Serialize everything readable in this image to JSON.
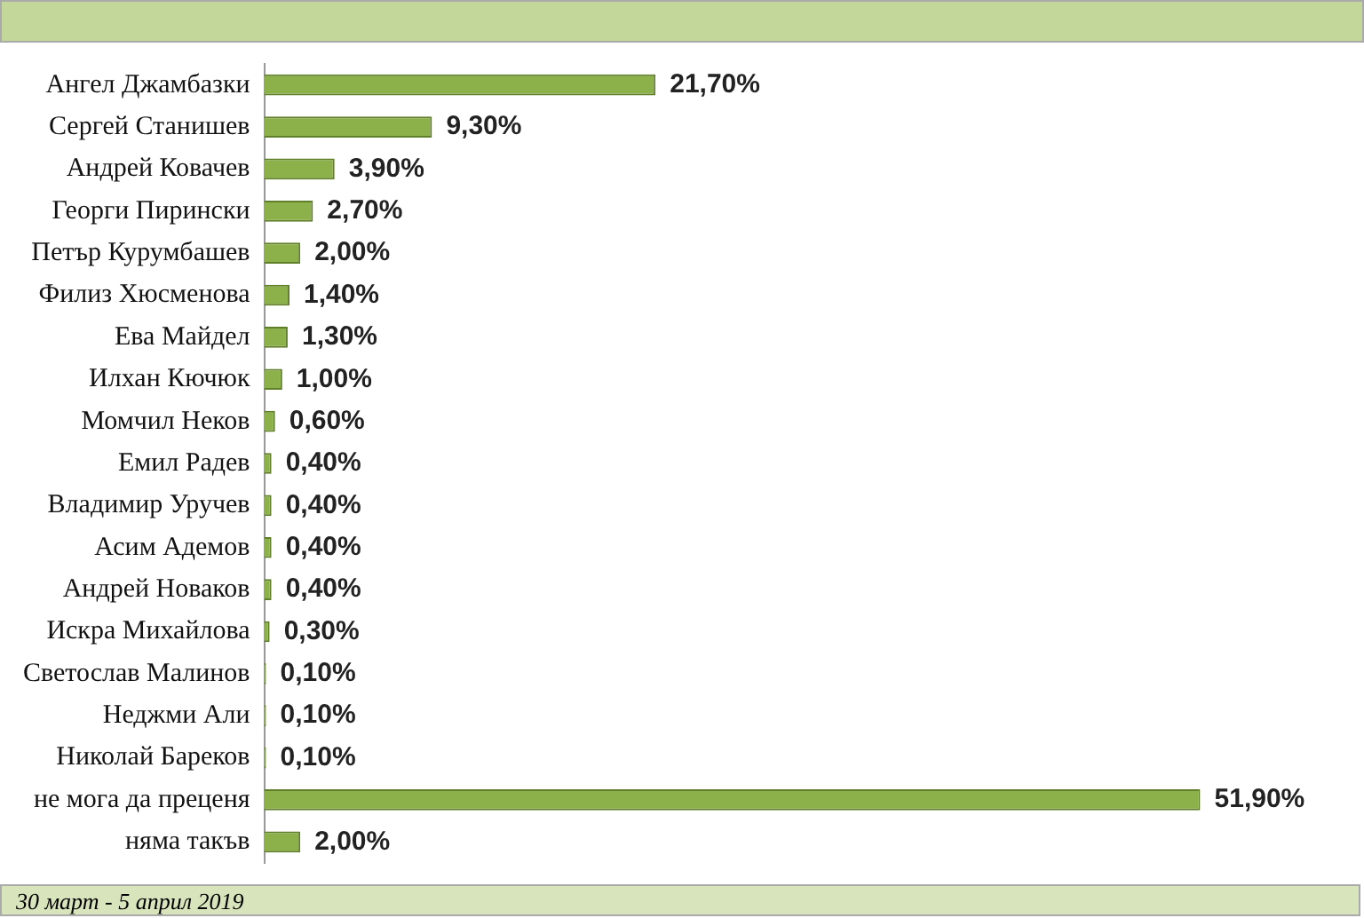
{
  "chart_data": {
    "type": "bar",
    "orientation": "horizontal",
    "categories": [
      "Ангел Джамбазки",
      "Сергей Станишев",
      "Андрей Ковачев",
      "Георги Пирински",
      "Петър Курумбашев",
      "Филиз Хюсменова",
      "Ева Майдел",
      "Илхан Кючюк",
      "Момчил Неков",
      "Емил Радев",
      "Владимир Уручев",
      "Асим Адемов",
      "Андрей Новаков",
      "Искра Михайлова",
      "Светослав Малинов",
      "Неджми Али",
      "Николай Бареков",
      "не мога да преценя",
      "няма такъв"
    ],
    "values": [
      21.7,
      9.3,
      3.9,
      2.7,
      2.0,
      1.4,
      1.3,
      1.0,
      0.6,
      0.4,
      0.4,
      0.4,
      0.4,
      0.3,
      0.1,
      0.1,
      0.1,
      51.9,
      2.0
    ],
    "value_labels": [
      "21,70%",
      "9,30%",
      "3,90%",
      "2,70%",
      "2,00%",
      "1,40%",
      "1,30%",
      "1,00%",
      "0,60%",
      "0,40%",
      "0,40%",
      "0,40%",
      "0,40%",
      "0,30%",
      "0,10%",
      "0,10%",
      "0,10%",
      "51,90%",
      "2,00%"
    ],
    "color": "#8cb04a",
    "grid": false,
    "legend": false,
    "annotations": [
      "30 март - 5 април 2019"
    ]
  }
}
